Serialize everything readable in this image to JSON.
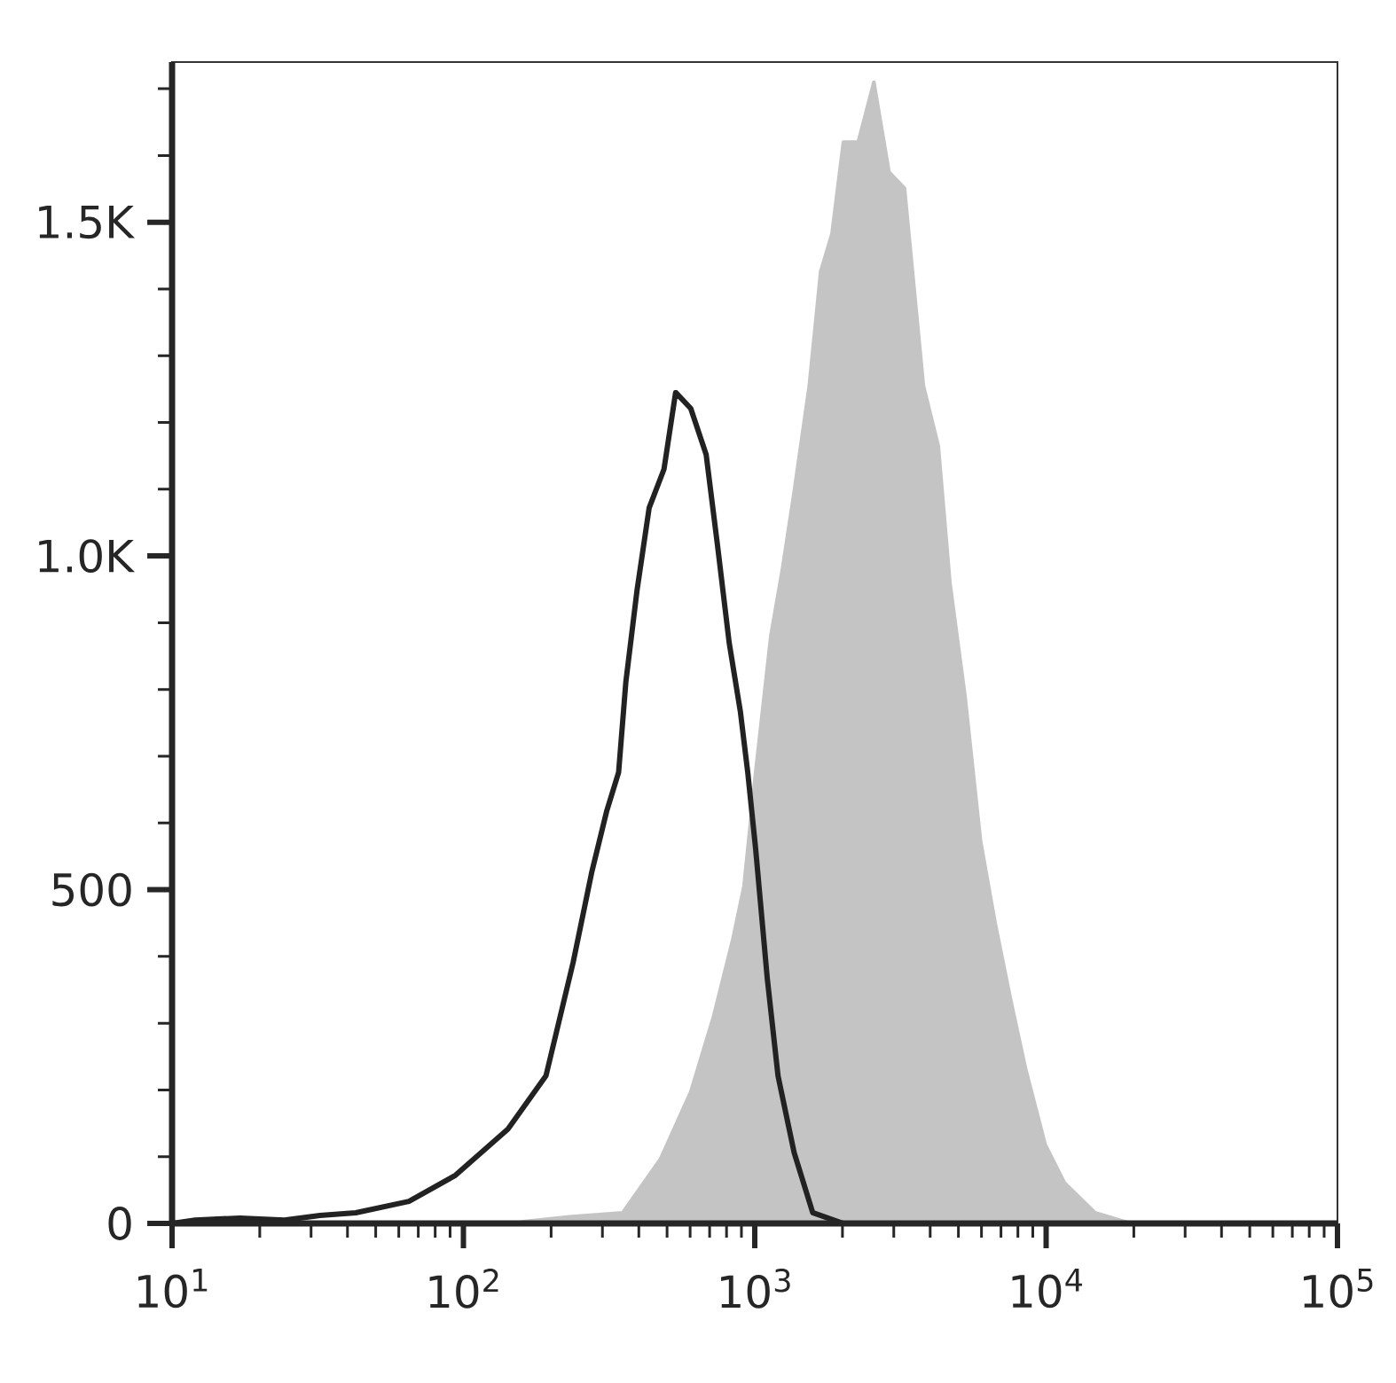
{
  "chart_data": {
    "type": "line",
    "log": "x",
    "xlim": [
      10,
      100000
    ],
    "ylim": [
      0,
      1740
    ],
    "xticks": [
      {
        "value": 10,
        "label": "10$^{1}$"
      },
      {
        "value": 20,
        "label": null
      },
      {
        "value": 30,
        "label": null
      },
      {
        "value": 40,
        "label": null
      },
      {
        "value": 50,
        "label": null
      },
      {
        "value": 60,
        "label": null
      },
      {
        "value": 70,
        "label": null
      },
      {
        "value": 80,
        "label": null
      },
      {
        "value": 90,
        "label": null
      },
      {
        "value": 100,
        "label": "10$^{2}$"
      },
      {
        "value": 200,
        "label": null
      },
      {
        "value": 300,
        "label": null
      },
      {
        "value": 400,
        "label": null
      },
      {
        "value": 500,
        "label": null
      },
      {
        "value": 600,
        "label": null
      },
      {
        "value": 700,
        "label": null
      },
      {
        "value": 800,
        "label": null
      },
      {
        "value": 900,
        "label": null
      },
      {
        "value": 1000,
        "label": "10$^{3}$"
      },
      {
        "value": 2000,
        "label": null
      },
      {
        "value": 3000,
        "label": null
      },
      {
        "value": 4000,
        "label": null
      },
      {
        "value": 5000,
        "label": null
      },
      {
        "value": 6000,
        "label": null
      },
      {
        "value": 7000,
        "label": null
      },
      {
        "value": 8000,
        "label": null
      },
      {
        "value": 9000,
        "label": null
      },
      {
        "value": 10000,
        "label": "10$^{4}$"
      },
      {
        "value": 20000,
        "label": null
      },
      {
        "value": 30000,
        "label": null
      },
      {
        "value": 40000,
        "label": null
      },
      {
        "value": 50000,
        "label": null
      },
      {
        "value": 60000,
        "label": null
      },
      {
        "value": 70000,
        "label": null
      },
      {
        "value": 80000,
        "label": null
      },
      {
        "value": 90000,
        "label": null
      },
      {
        "value": 100000,
        "label": "10$^{5}$"
      }
    ],
    "yticks": [
      0,
      {
        "value": 100,
        "label": null
      },
      {
        "value": 200,
        "label": null
      },
      {
        "value": 300,
        "label": null
      },
      {
        "value": 400,
        "label": null
      },
      500,
      {
        "value": 600,
        "label": null
      },
      {
        "value": 700,
        "label": null
      },
      {
        "value": 800,
        "label": null
      },
      {
        "value": 900,
        "label": null
      },
      {
        "value": 1000,
        "label": "1.0K"
      },
      {
        "value": 1100,
        "label": null
      },
      {
        "value": 1200,
        "label": null
      },
      {
        "value": 1300,
        "label": null
      },
      {
        "value": 1400,
        "label": null
      },
      {
        "value": 1500,
        "label": "1.5K"
      },
      {
        "value": 1600,
        "label": null
      },
      {
        "value": 1700,
        "label": null
      }
    ],
    "series": [
      {
        "type": "area",
        "color": "#c4c4c4",
        "x": [
          150,
          163,
          231,
          352,
          474,
          603,
          723,
          841,
          918,
          1007,
          1135,
          1245,
          1365,
          1538,
          1683,
          1841,
          2014,
          2265,
          2564,
          2891,
          3266,
          3793,
          4266,
          4677,
          5272,
          5957,
          6699,
          7568,
          8511,
          9931,
          11560,
          14720,
          19540
        ],
        "values": [
          0,
          3,
          10,
          16,
          96,
          197,
          311,
          426,
          505,
          676,
          880,
          981,
          1096,
          1255,
          1426,
          1483,
          1620,
          1620,
          1710,
          1575,
          1551,
          1255,
          1165,
          960,
          789,
          573,
          448,
          334,
          231,
          118,
          61,
          16,
          0
        ]
      },
      {
        "color": "#222222",
        "x": [
          10,
          12,
          17.1,
          24.3,
          32.2,
          42.7,
          65,
          93.8,
          142,
          192,
          238,
          276,
          310,
          341,
          361,
          394,
          434,
          488,
          535,
          603,
          681,
          745,
          817,
          893,
          946,
          1007,
          1104,
          1202,
          1365,
          1581,
          2014,
          100000
        ],
        "values": [
          0,
          5,
          8,
          5,
          12,
          16,
          33,
          72,
          141,
          221,
          391,
          527,
          617,
          676,
          811,
          947,
          1072,
          1130,
          1245,
          1221,
          1152,
          1016,
          870,
          766,
          676,
          561,
          367,
          221,
          106,
          16,
          0,
          0
        ]
      }
    ]
  }
}
